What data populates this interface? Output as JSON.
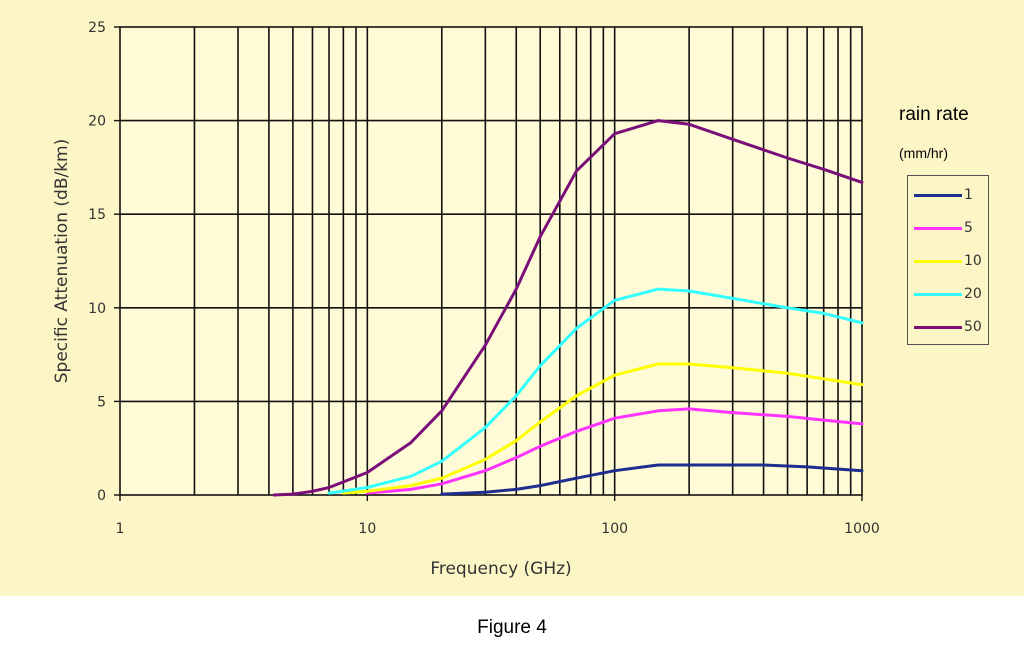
{
  "chart_data": {
    "type": "line",
    "xscale": "log",
    "xlim": [
      1,
      1000
    ],
    "ylim": [
      0,
      25
    ],
    "grid": true,
    "xlabel": "Frequency (GHz)",
    "ylabel": "Specific Attenuation (dB/km)",
    "xticks": [
      "1",
      "10",
      "100",
      "1000"
    ],
    "yticks": [
      "0",
      "5",
      "10",
      "15",
      "20",
      "25"
    ],
    "legend_title": "rain rate",
    "legend_unit": "(mm/hr)",
    "legend_position": "right",
    "series": [
      {
        "name": "1",
        "color": "#1f2d8f",
        "x": [
          20,
          30,
          40,
          50,
          70,
          100,
          150,
          200,
          300,
          400,
          600,
          1000
        ],
        "y": [
          0.05,
          0.15,
          0.3,
          0.5,
          0.9,
          1.3,
          1.6,
          1.6,
          1.6,
          1.6,
          1.5,
          1.3
        ]
      },
      {
        "name": "5",
        "color": "#ff33ff",
        "x": [
          10,
          15,
          20,
          30,
          40,
          50,
          70,
          100,
          150,
          200,
          300,
          500,
          700,
          1000
        ],
        "y": [
          0.1,
          0.3,
          0.6,
          1.3,
          2.0,
          2.6,
          3.4,
          4.1,
          4.5,
          4.6,
          4.4,
          4.2,
          4.0,
          3.8
        ]
      },
      {
        "name": "10",
        "color": "#ffff00",
        "x": [
          8,
          10,
          15,
          20,
          30,
          40,
          50,
          70,
          100,
          150,
          200,
          300,
          500,
          1000
        ],
        "y": [
          0.1,
          0.2,
          0.5,
          0.9,
          1.9,
          2.9,
          3.9,
          5.3,
          6.4,
          7.0,
          7.0,
          6.8,
          6.5,
          5.9
        ]
      },
      {
        "name": "20",
        "color": "#33ffff",
        "x": [
          7,
          10,
          15,
          20,
          30,
          40,
          50,
          70,
          100,
          150,
          200,
          300,
          500,
          700,
          1000
        ],
        "y": [
          0.1,
          0.4,
          1.0,
          1.8,
          3.6,
          5.3,
          6.9,
          8.9,
          10.4,
          11.0,
          10.9,
          10.5,
          10.0,
          9.7,
          9.2
        ]
      },
      {
        "name": "50",
        "color": "#7a0f7a",
        "x": [
          4.2,
          5,
          6,
          7,
          8,
          10,
          15,
          20,
          30,
          40,
          50,
          70,
          100,
          150,
          200,
          300,
          500,
          700,
          1000
        ],
        "y": [
          0.0,
          0.05,
          0.2,
          0.4,
          0.7,
          1.2,
          2.8,
          4.5,
          8.0,
          11.0,
          13.8,
          17.3,
          19.3,
          20.0,
          19.8,
          19.0,
          18.0,
          17.4,
          16.7
        ]
      }
    ]
  },
  "caption": "Figure 4"
}
